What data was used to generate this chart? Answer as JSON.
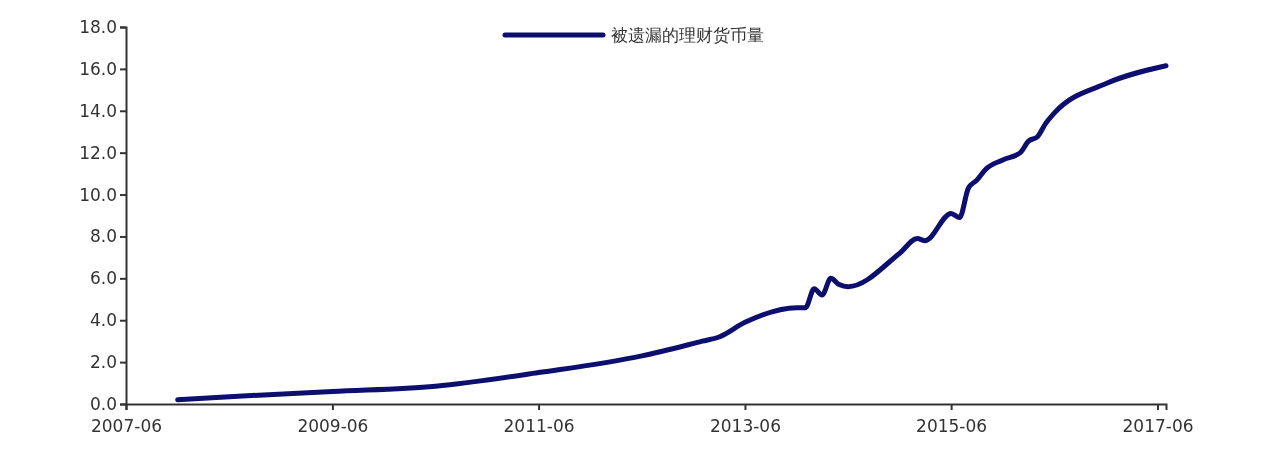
{
  "chart_data": {
    "type": "line",
    "x": [
      "2007-12",
      "2008-06",
      "2009-06",
      "2010-06",
      "2011-06",
      "2012-06",
      "2013-01",
      "2013-03",
      "2013-06",
      "2013-12",
      "2014-01",
      "2014-02",
      "2014-03",
      "2014-04",
      "2014-05",
      "2014-06",
      "2014-12",
      "2015-02",
      "2015-03",
      "2015-06",
      "2015-07",
      "2015-08",
      "2015-09",
      "2015-10",
      "2015-12",
      "2016-02",
      "2016-03",
      "2016-04",
      "2016-05",
      "2016-06",
      "2016-12",
      "2017-07"
    ],
    "series": [
      {
        "name": "被遗漏的理财货币量",
        "color": "#0d0f6e",
        "values": [
          0.2,
          0.35,
          0.6,
          0.85,
          1.5,
          2.3,
          3.0,
          3.2,
          3.9,
          4.6,
          4.6,
          5.5,
          5.2,
          6.0,
          5.7,
          5.6,
          7.2,
          7.9,
          7.8,
          9.1,
          8.9,
          10.3,
          10.7,
          11.2,
          11.65,
          12.0,
          12.55,
          12.75,
          13.4,
          13.9,
          15.3,
          16.15
        ]
      }
    ],
    "xlim": [
      "2007-06",
      "2017-07"
    ],
    "xticks": [
      {
        "value": "2007-06",
        "label": "2007-06"
      },
      {
        "value": "2009-06",
        "label": "2009-06"
      },
      {
        "value": "2011-06",
        "label": "2011-06"
      },
      {
        "value": "2013-06",
        "label": "2013-06"
      },
      {
        "value": "2015-06",
        "label": "2015-06"
      },
      {
        "value": "2017-06",
        "label": "2017-06"
      }
    ],
    "ylim": [
      0,
      18
    ],
    "yticks": [
      {
        "value": 0,
        "label": "0.0"
      },
      {
        "value": 2,
        "label": "2.0"
      },
      {
        "value": 4,
        "label": "4.0"
      },
      {
        "value": 6,
        "label": "6.0"
      },
      {
        "value": 8,
        "label": "8.0"
      },
      {
        "value": 10,
        "label": "10.0"
      },
      {
        "value": 12,
        "label": "12.0"
      },
      {
        "value": 14,
        "label": "14.0"
      },
      {
        "value": 16,
        "label": "16.0"
      },
      {
        "value": 18,
        "label": "18.0"
      }
    ],
    "grid": false,
    "legend": "top",
    "marker": "none",
    "line_style": "solid"
  }
}
